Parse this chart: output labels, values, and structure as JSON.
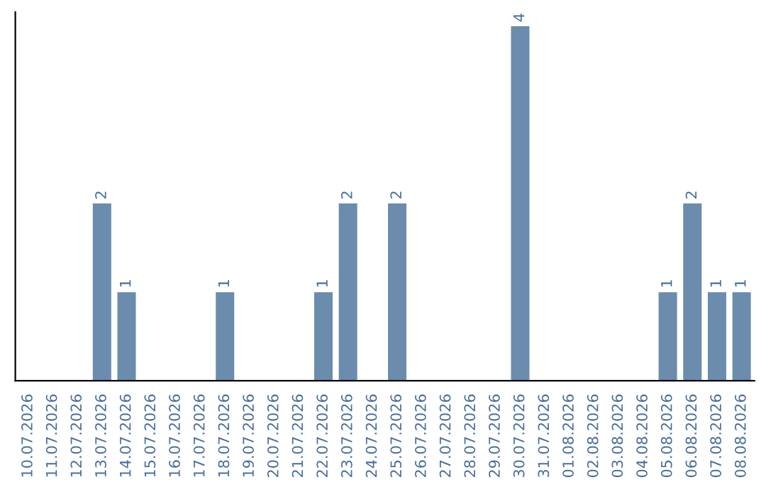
{
  "chart_data": {
    "type": "bar",
    "categories": [
      "10.07.2026",
      "11.07.2026",
      "12.07.2026",
      "13.07.2026",
      "14.07.2026",
      "15.07.2026",
      "16.07.2026",
      "17.07.2026",
      "18.07.2026",
      "19.07.2026",
      "20.07.2026",
      "21.07.2026",
      "22.07.2026",
      "23.07.2026",
      "24.07.2026",
      "25.07.2026",
      "26.07.2026",
      "27.07.2026",
      "28.07.2026",
      "29.07.2026",
      "30.07.2026",
      "31.07.2026",
      "01.08.2026",
      "02.08.2026",
      "03.08.2026",
      "04.08.2026",
      "05.08.2026",
      "06.08.2026",
      "07.08.2026",
      "08.08.2026"
    ],
    "values": [
      0,
      0,
      0,
      2,
      1,
      0,
      0,
      0,
      1,
      0,
      0,
      0,
      1,
      2,
      0,
      2,
      0,
      0,
      0,
      0,
      4,
      0,
      0,
      0,
      0,
      0,
      1,
      2,
      1,
      1
    ],
    "value_labels": [
      null,
      null,
      null,
      "2",
      "1",
      null,
      null,
      null,
      "1",
      null,
      null,
      null,
      "1",
      "2",
      null,
      "2",
      null,
      null,
      null,
      null,
      "4",
      null,
      null,
      null,
      null,
      null,
      "1",
      "2",
      "1",
      "1"
    ],
    "color": "#6b8cac",
    "grid": false
  }
}
